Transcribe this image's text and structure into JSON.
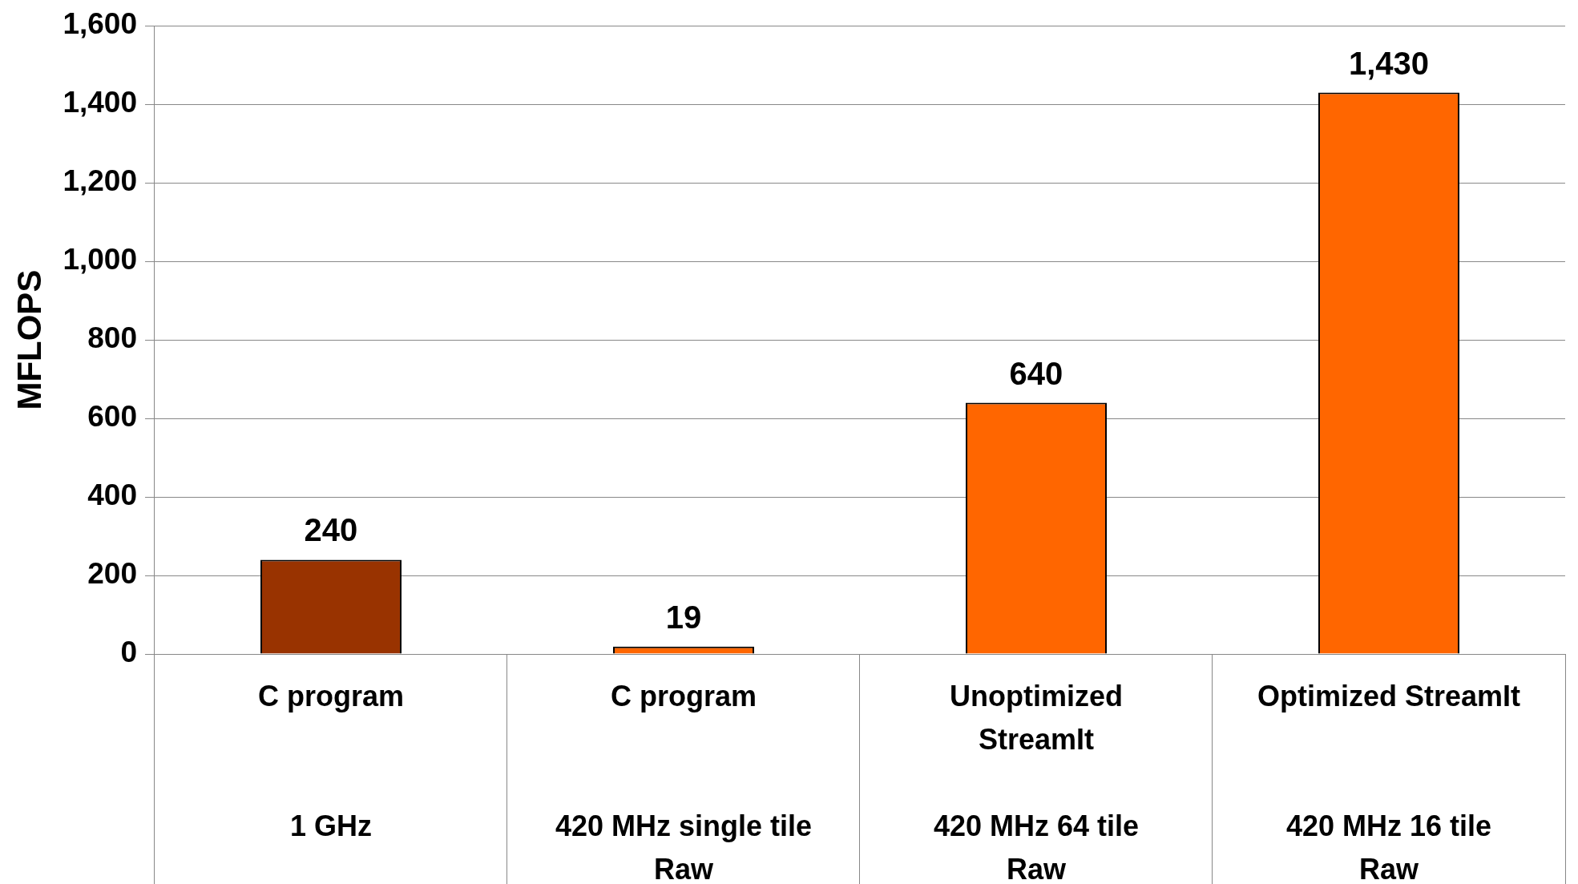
{
  "chart_data": {
    "type": "bar",
    "ylabel": "MFLOPS",
    "categories": [
      "C program\n\n\n1 GHz",
      "C program\n\n\n420 MHz single tile\nRaw",
      "Unoptimized\nStreamIt\n\n420 MHz 64 tile\nRaw",
      "Optimized StreamIt\n\n\n420 MHz 16 tile\nRaw"
    ],
    "values": [
      240,
      19,
      640,
      1430
    ],
    "colors": [
      "#993300",
      "#ff6600",
      "#ff6600",
      "#ff6600"
    ],
    "value_labels": [
      "240",
      "19",
      "640",
      "1,430"
    ],
    "ylim": [
      0,
      1600
    ],
    "yticks": [
      0,
      200,
      400,
      600,
      800,
      {
        "value": 1000,
        "label": "1,000"
      },
      {
        "value": 1200,
        "label": "1,200"
      },
      {
        "value": 1400,
        "label": "1,400"
      },
      {
        "value": 1600,
        "label": "1,600"
      }
    ],
    "grid": "y",
    "legend": false
  }
}
